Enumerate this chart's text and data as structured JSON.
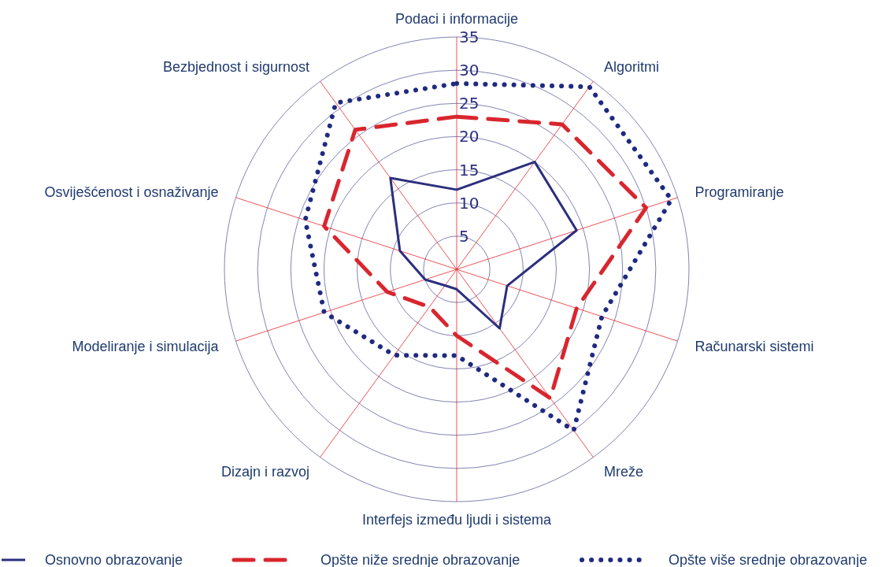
{
  "chart_data": {
    "type": "radar",
    "categories": [
      "Podaci i informacije",
      "Algoritmi",
      "Programiranje",
      "Računarski sistemi",
      "Mreže",
      "Interfejs između ljudi i sistema",
      "Dizajn i razvoj",
      "Modeliranje i simulacija",
      "Osviješćenost i osnaživanje",
      "Bezbjednost i sigurnost"
    ],
    "series": [
      {
        "name": "Osnovno obrazovanje",
        "color": "#2b2f7e",
        "line_style": "solid",
        "values": [
          12,
          20,
          19,
          8,
          11,
          3,
          3,
          5,
          9,
          17
        ]
      },
      {
        "name": "Opšte niže srednje obrazovanje",
        "color": "#d9262e",
        "line_style": "dashed",
        "values": [
          23,
          27,
          30,
          19,
          24,
          10,
          7,
          11,
          21,
          26
        ]
      },
      {
        "name": "Opšte više srednje obrazovanje",
        "color": "#1f2a80",
        "line_style": "dotted",
        "values": [
          28,
          34,
          34,
          23,
          30,
          13,
          16,
          21,
          24,
          31
        ]
      }
    ],
    "ylim": [
      0,
      35
    ],
    "yticks": [
      5,
      10,
      15,
      20,
      25,
      30,
      35
    ],
    "grid": true,
    "legend": "bottom",
    "marker": "none"
  }
}
